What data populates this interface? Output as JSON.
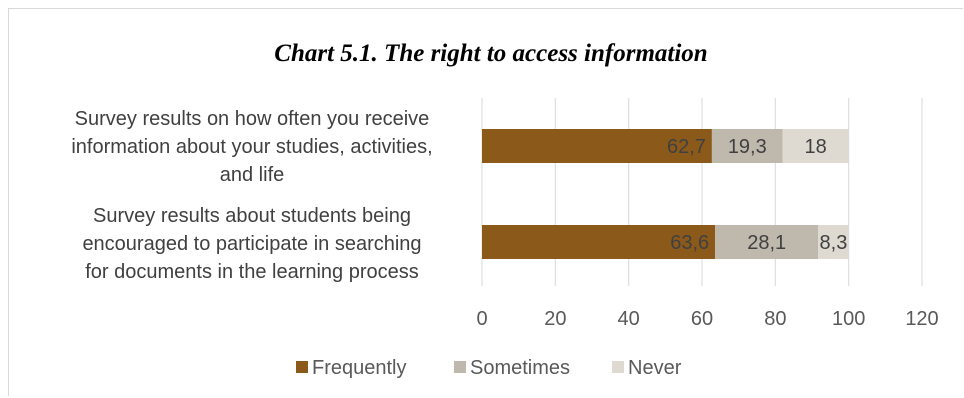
{
  "chart_data": {
    "type": "bar",
    "orientation": "horizontal",
    "stacked": true,
    "title": "Chart 5.1. The right to access information",
    "categories": [
      [
        "Survey results on how often you receive",
        "information about your studies, activities,",
        "and life"
      ],
      [
        "Survey results about students being",
        "encouraged to participate in searching",
        "for documents in the learning process"
      ]
    ],
    "series": [
      {
        "name": "Frequently",
        "color": "#8b5a1b",
        "values": [
          62.7,
          63.6
        ],
        "labels": [
          "62,7",
          "63,6"
        ]
      },
      {
        "name": "Sometimes",
        "color": "#bfb8ad",
        "values": [
          19.3,
          28.1
        ],
        "labels": [
          "19,3",
          "28,1"
        ]
      },
      {
        "name": "Never",
        "color": "#dedad2",
        "values": [
          18,
          8.3
        ],
        "labels": [
          "18",
          "8,3"
        ]
      }
    ],
    "xlim": [
      0,
      120
    ],
    "xticks": [
      0,
      20,
      40,
      60,
      80,
      100,
      120
    ],
    "grid": true,
    "legend": "bottom"
  }
}
